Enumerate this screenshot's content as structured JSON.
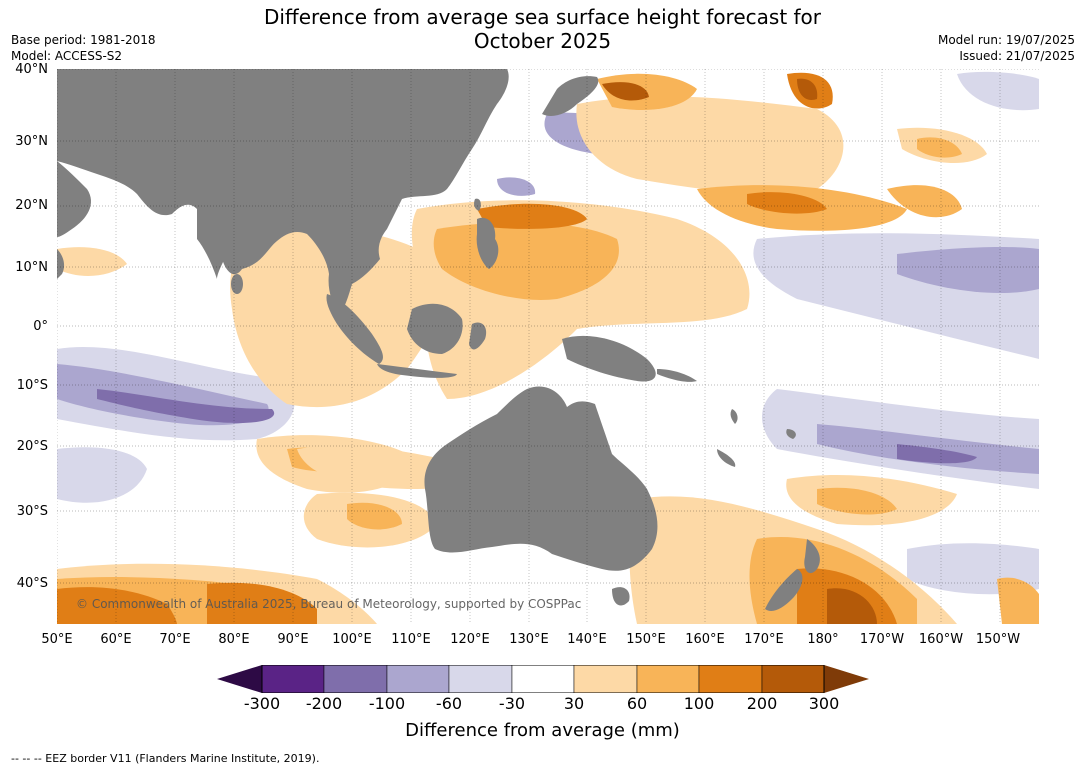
{
  "title_line1": "Difference from average sea surface height forecast for",
  "title_line2": "October 2025",
  "meta": {
    "base_period": "Base period: 1981-2018",
    "model": "Model: ACCESS-S2",
    "model_run": "Model run: 19/07/2025",
    "issued": "Issued: 21/07/2025"
  },
  "copyright": "© Commonwealth of Australia 2025, Bureau of Meteorology, supported by COSPPac",
  "lat_labels": [
    "40°N",
    "30°N",
    "20°N",
    "10°N",
    "0°",
    "10°S",
    "20°S",
    "30°S",
    "40°S"
  ],
  "lon_labels": [
    "50°E",
    "60°E",
    "70°E",
    "80°E",
    "90°E",
    "100°E",
    "110°E",
    "120°E",
    "130°E",
    "140°E",
    "150°E",
    "160°E",
    "170°E",
    "180°",
    "170°W",
    "160°W",
    "150°W"
  ],
  "colorbar": {
    "title": "Difference from average (mm)",
    "ticks": [
      "-300",
      "-200",
      "-100",
      "-60",
      "-30",
      "30",
      "60",
      "100",
      "200",
      "300"
    ],
    "colors": [
      "#2d0a45",
      "#5a2386",
      "#7f6eab",
      "#aba6cf",
      "#d8d8ea",
      "#ffffff",
      "#fdd9a6",
      "#f8b458",
      "#e07e16",
      "#b45a09",
      "#7f3b08"
    ]
  },
  "footnote": "--  --  -- EEZ border V11 (Flanders Marine Institute, 2019).",
  "colors": {
    "land": "#808080",
    "ocean": "#ffffff"
  }
}
